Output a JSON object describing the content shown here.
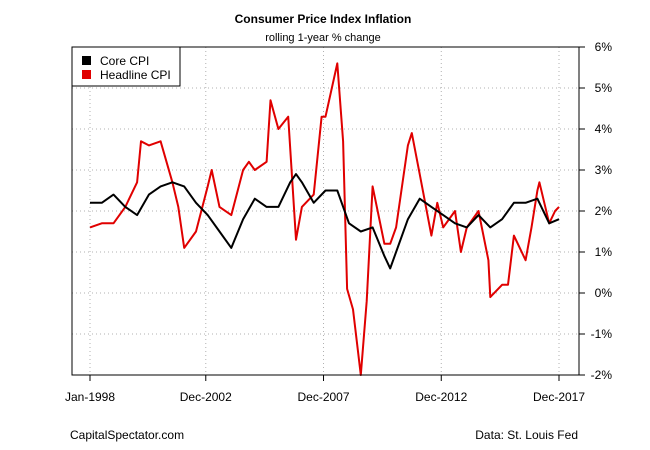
{
  "chart_data": {
    "type": "line",
    "title": "Consumer Price Index Inflation",
    "subtitle": "rolling 1-year % change",
    "xlabel": "",
    "ylabel": "",
    "x_ticks": [
      "Jan-1998",
      "Dec-2002",
      "Dec-2007",
      "Dec-2012",
      "Dec-2017"
    ],
    "y_ticks": [
      "-2%",
      "-1%",
      "0%",
      "1%",
      "2%",
      "3%",
      "4%",
      "5%",
      "6%"
    ],
    "ylim": [
      -2,
      6
    ],
    "grid": true,
    "legend_position": "top-left",
    "colors": {
      "core": "#000000",
      "headline": "#e00000",
      "grid": "#b0b0b0"
    },
    "series": [
      {
        "name": "Core CPI",
        "points": [
          [
            "1998-01",
            2.2
          ],
          [
            "1998-07",
            2.2
          ],
          [
            "1999-01",
            2.4
          ],
          [
            "1999-07",
            2.1
          ],
          [
            "2000-01",
            1.9
          ],
          [
            "2000-07",
            2.4
          ],
          [
            "2001-01",
            2.6
          ],
          [
            "2001-07",
            2.7
          ],
          [
            "2002-01",
            2.6
          ],
          [
            "2002-07",
            2.2
          ],
          [
            "2003-01",
            1.9
          ],
          [
            "2003-07",
            1.5
          ],
          [
            "2004-01",
            1.1
          ],
          [
            "2004-07",
            1.8
          ],
          [
            "2005-01",
            2.3
          ],
          [
            "2005-07",
            2.1
          ],
          [
            "2006-01",
            2.1
          ],
          [
            "2006-07",
            2.7
          ],
          [
            "2006-10",
            2.9
          ],
          [
            "2007-01",
            2.7
          ],
          [
            "2007-07",
            2.2
          ],
          [
            "2008-01",
            2.5
          ],
          [
            "2008-07",
            2.5
          ],
          [
            "2009-01",
            1.7
          ],
          [
            "2009-07",
            1.5
          ],
          [
            "2010-01",
            1.6
          ],
          [
            "2010-07",
            0.9
          ],
          [
            "2010-10",
            0.6
          ],
          [
            "2011-01",
            1.0
          ],
          [
            "2011-07",
            1.8
          ],
          [
            "2012-01",
            2.3
          ],
          [
            "2012-07",
            2.1
          ],
          [
            "2013-01",
            1.9
          ],
          [
            "2013-07",
            1.7
          ],
          [
            "2014-01",
            1.6
          ],
          [
            "2014-07",
            1.9
          ],
          [
            "2015-01",
            1.6
          ],
          [
            "2015-07",
            1.8
          ],
          [
            "2016-01",
            2.2
          ],
          [
            "2016-07",
            2.2
          ],
          [
            "2017-01",
            2.3
          ],
          [
            "2017-07",
            1.7
          ],
          [
            "2017-12",
            1.8
          ]
        ]
      },
      {
        "name": "Headline CPI",
        "points": [
          [
            "1998-01",
            1.6
          ],
          [
            "1998-07",
            1.7
          ],
          [
            "1999-01",
            1.7
          ],
          [
            "1999-07",
            2.1
          ],
          [
            "2000-01",
            2.7
          ],
          [
            "2000-03",
            3.7
          ],
          [
            "2000-07",
            3.6
          ],
          [
            "2001-01",
            3.7
          ],
          [
            "2001-07",
            2.7
          ],
          [
            "2001-10",
            2.1
          ],
          [
            "2002-01",
            1.1
          ],
          [
            "2002-07",
            1.5
          ],
          [
            "2003-01",
            2.6
          ],
          [
            "2003-03",
            3.0
          ],
          [
            "2003-07",
            2.1
          ],
          [
            "2004-01",
            1.9
          ],
          [
            "2004-07",
            3.0
          ],
          [
            "2004-10",
            3.2
          ],
          [
            "2005-01",
            3.0
          ],
          [
            "2005-07",
            3.2
          ],
          [
            "2005-09",
            4.7
          ],
          [
            "2006-01",
            4.0
          ],
          [
            "2006-06",
            4.3
          ],
          [
            "2006-10",
            1.3
          ],
          [
            "2007-01",
            2.1
          ],
          [
            "2007-07",
            2.4
          ],
          [
            "2007-11",
            4.3
          ],
          [
            "2008-01",
            4.3
          ],
          [
            "2008-07",
            5.6
          ],
          [
            "2008-10",
            3.7
          ],
          [
            "2008-12",
            0.1
          ],
          [
            "2009-03",
            -0.4
          ],
          [
            "2009-07",
            -2.1
          ],
          [
            "2009-10",
            -0.2
          ],
          [
            "2010-01",
            2.6
          ],
          [
            "2010-07",
            1.2
          ],
          [
            "2010-10",
            1.2
          ],
          [
            "2011-01",
            1.6
          ],
          [
            "2011-07",
            3.6
          ],
          [
            "2011-09",
            3.9
          ],
          [
            "2012-01",
            2.9
          ],
          [
            "2012-07",
            1.4
          ],
          [
            "2012-10",
            2.2
          ],
          [
            "2013-01",
            1.6
          ],
          [
            "2013-07",
            2.0
          ],
          [
            "2013-10",
            1.0
          ],
          [
            "2014-01",
            1.6
          ],
          [
            "2014-07",
            2.0
          ],
          [
            "2014-12",
            0.8
          ],
          [
            "2015-01",
            -0.1
          ],
          [
            "2015-07",
            0.2
          ],
          [
            "2015-10",
            0.2
          ],
          [
            "2016-01",
            1.4
          ],
          [
            "2016-07",
            0.8
          ],
          [
            "2016-10",
            1.6
          ],
          [
            "2017-01",
            2.5
          ],
          [
            "2017-02",
            2.7
          ],
          [
            "2017-07",
            1.7
          ],
          [
            "2017-10",
            2.0
          ],
          [
            "2017-12",
            2.1
          ]
        ]
      }
    ]
  },
  "footer": {
    "left": "CapitalSpectator.com",
    "right": "Data: St. Louis Fed"
  }
}
